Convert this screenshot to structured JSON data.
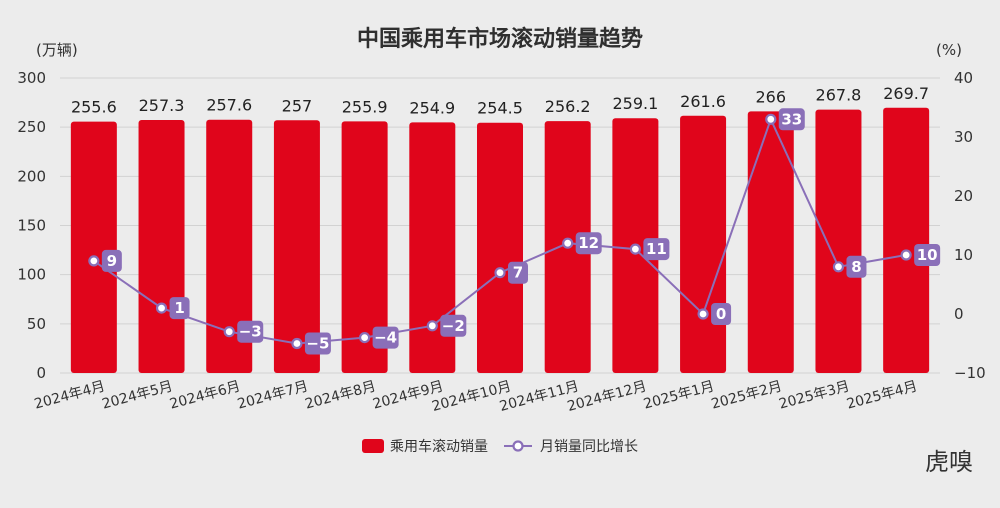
{
  "chart_data": {
    "type": "bar",
    "title": "中国乘用车市场滚动销量趋势",
    "categories": [
      "2024年4月",
      "2024年5月",
      "2024年6月",
      "2024年7月",
      "2024年8月",
      "2024年9月",
      "2024年10月",
      "2024年11月",
      "2024年12月",
      "2025年1月",
      "2025年2月",
      "2025年3月",
      "2025年4月"
    ],
    "left_axis": {
      "unit": "(万辆)",
      "ylim": [
        0,
        300
      ],
      "ticks": [
        0,
        50,
        100,
        150,
        200,
        250,
        300
      ]
    },
    "right_axis": {
      "unit": "(%)",
      "ylim": [
        -10,
        40
      ],
      "ticks": [
        -10,
        0,
        10,
        20,
        30,
        40
      ]
    },
    "series": [
      {
        "name": "乘用车滚动销量",
        "type": "bar",
        "axis": "left",
        "color": "#e0051b",
        "values": [
          255.6,
          257.3,
          257.6,
          257,
          255.9,
          254.9,
          254.5,
          256.2,
          259.1,
          261.6,
          266,
          267.8,
          269.7
        ],
        "labels": [
          "255.6",
          "257.3",
          "257.6",
          "257",
          "255.9",
          "254.9",
          "254.5",
          "256.2",
          "259.1",
          "261.6",
          "266",
          "267.8",
          "269.7"
        ]
      },
      {
        "name": "月销量同比增长",
        "type": "line",
        "axis": "right",
        "color": "#8a6fb8",
        "values": [
          9,
          1,
          -3,
          -5,
          -4,
          -2,
          7,
          12,
          11,
          0,
          33,
          8,
          10
        ],
        "labels": [
          "9",
          "1",
          "−3",
          "−5",
          "−4",
          "−2",
          "7",
          "12",
          "11",
          "0",
          "33",
          "8",
          "10"
        ]
      }
    ],
    "legend": "bottom-center",
    "grid": true
  },
  "watermark": "虎嗅"
}
